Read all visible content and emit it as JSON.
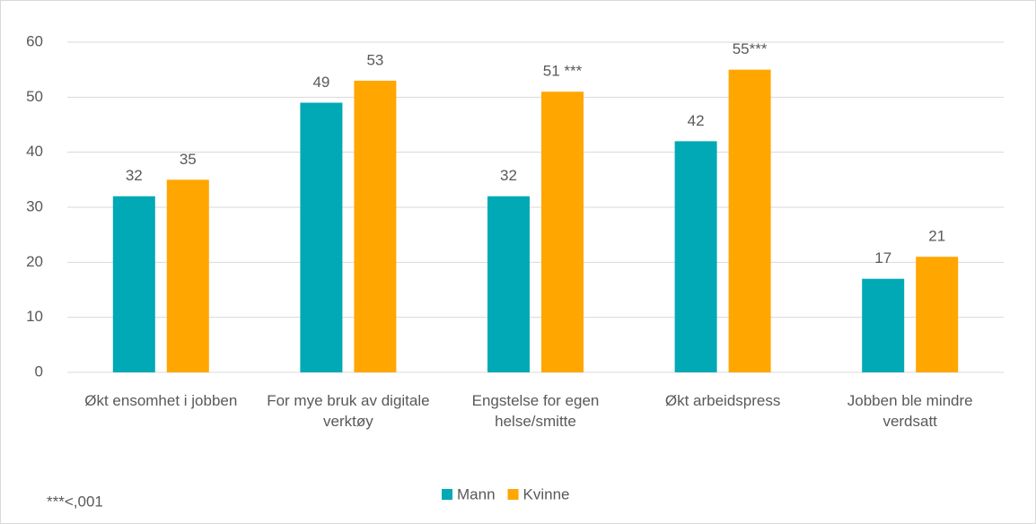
{
  "chart_data": {
    "type": "bar",
    "categories": [
      "Økt ensomhet i jobben",
      "For mye bruk av digitale verktøy",
      "Engstelse for egen helse/smitte",
      "Økt arbeidspress",
      "Jobben ble mindre verdsatt"
    ],
    "series": [
      {
        "name": "Mann",
        "color": "#00a9b5",
        "values": [
          32,
          49,
          32,
          42,
          17
        ],
        "value_labels": [
          "32",
          "49",
          "32",
          "42",
          "17"
        ]
      },
      {
        "name": "Kvinne",
        "color": "#ffa600",
        "values": [
          35,
          53,
          51,
          55,
          21
        ],
        "value_labels": [
          "35",
          "53",
          "51 ***",
          "55***",
          "21"
        ]
      }
    ],
    "ylim": [
      0,
      60
    ],
    "yticks": [
      0,
      10,
      20,
      30,
      40,
      50,
      60
    ],
    "grid": true,
    "legend": "bottom",
    "annotations": [
      "***<,001"
    ]
  }
}
